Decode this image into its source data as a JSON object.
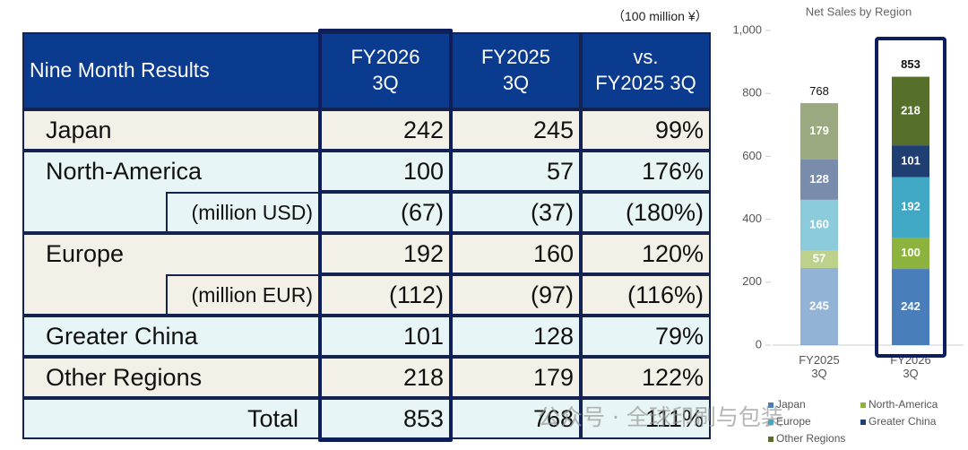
{
  "unit": "（100 million ¥）",
  "table": {
    "header": [
      "Nine Month Results",
      "FY2026\n3Q",
      "FY2025\n3Q",
      "vs.\nFY2025 3Q"
    ],
    "rows": [
      {
        "label": "Japan",
        "cells": [
          "242",
          "245",
          "99%"
        ]
      },
      {
        "label": "North-America",
        "cells": [
          "100",
          "57",
          "176%"
        ]
      },
      {
        "label": "(million USD)",
        "cells": [
          "(67)",
          "(37)",
          "(180%)"
        ],
        "sub": true
      },
      {
        "label": "Europe",
        "cells": [
          "192",
          "160",
          "120%"
        ]
      },
      {
        "label": "(million EUR)",
        "cells": [
          "(112)",
          "(97)",
          "(116%)"
        ],
        "sub": true
      },
      {
        "label": "Greater China",
        "cells": [
          "101",
          "128",
          "79%"
        ]
      },
      {
        "label": "Other Regions",
        "cells": [
          "218",
          "179",
          "122%"
        ]
      },
      {
        "label": "Total",
        "cells": [
          "853",
          "768",
          "111%"
        ]
      }
    ]
  },
  "watermark": "公众号 · 全球印刷与包装",
  "chart_data": {
    "type": "stacked_bar",
    "title": "Net Sales by Region",
    "categories": [
      "FY2025\n3Q",
      "FY2026\n3Q"
    ],
    "series": [
      {
        "name": "Japan",
        "color": "#4a7ebb",
        "values": [
          245,
          242
        ]
      },
      {
        "name": "North-America",
        "color": "#8db33f",
        "values": [
          57,
          100
        ]
      },
      {
        "name": "Europe",
        "color": "#40a8c4",
        "values": [
          160,
          192
        ]
      },
      {
        "name": "Greater China",
        "color": "#1f3f73",
        "values": [
          128,
          101
        ]
      },
      {
        "name": "Other Regions",
        "color": "#56702b",
        "values": [
          179,
          218
        ]
      }
    ],
    "totals": [
      768,
      853
    ],
    "ylim": [
      0,
      1000
    ],
    "yticks": [
      0,
      200,
      400,
      600,
      800,
      {
        "value": 1000,
        "label": "1,000"
      }
    ]
  }
}
